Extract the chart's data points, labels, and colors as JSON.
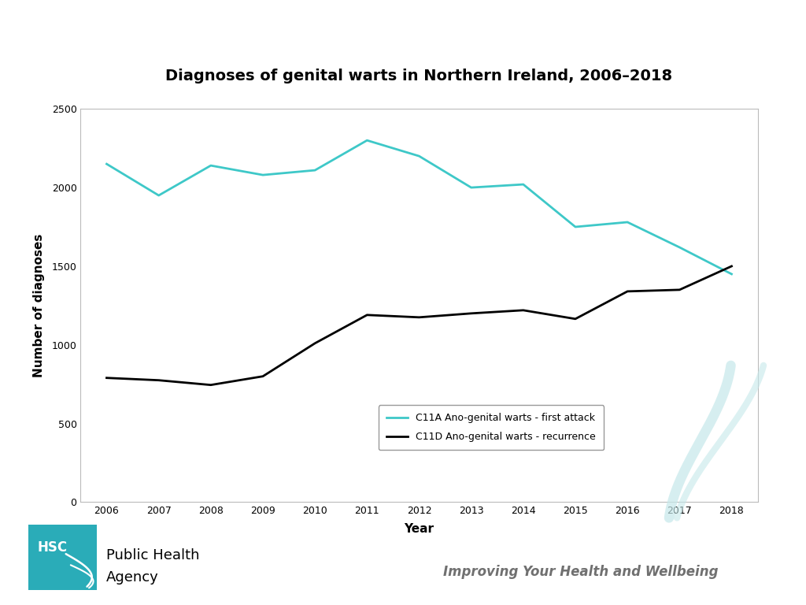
{
  "title": "Diagnoses of genital warts in Northern Ireland, 2006–2018",
  "xlabel": "Year",
  "ylabel": "Number of diagnoses",
  "years": [
    2006,
    2007,
    2008,
    2009,
    2010,
    2011,
    2012,
    2013,
    2014,
    2015,
    2016,
    2017,
    2018
  ],
  "first_attack": [
    2150,
    1950,
    2140,
    2080,
    2110,
    2300,
    2200,
    2000,
    2020,
    1750,
    1780,
    1620,
    1450
  ],
  "recurrence": [
    790,
    775,
    745,
    800,
    1010,
    1190,
    1175,
    1200,
    1220,
    1165,
    1340,
    1350,
    1500
  ],
  "first_attack_color": "#3ec8c8",
  "recurrence_color": "#000000",
  "first_attack_label": "C11A Ano-genital warts - first attack",
  "recurrence_label": "C11D Ano-genital warts - recurrence",
  "ylim": [
    0,
    2500
  ],
  "yticks": [
    0,
    500,
    1000,
    1500,
    2000,
    2500
  ],
  "background_color": "#ffffff",
  "plot_background": "#ffffff",
  "title_fontsize": 14,
  "axis_label_fontsize": 11,
  "tick_fontsize": 9,
  "legend_fontsize": 9,
  "footer_text": "Improving Your Health and Wellbeing",
  "hsc_color": "#2aacb8",
  "agency_text_line1": "Public Health",
  "agency_text_line2": "Agency"
}
